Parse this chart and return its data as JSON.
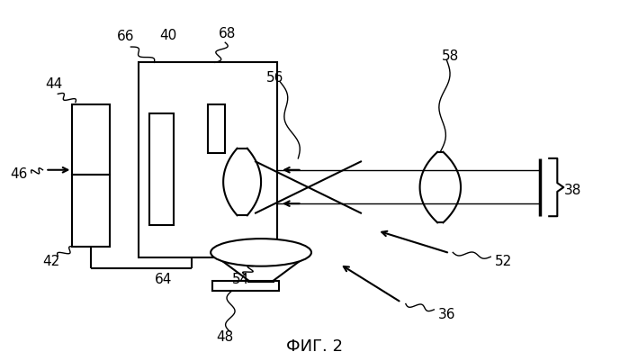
{
  "bg_color": "#ffffff",
  "line_color": "#000000",
  "title": "ФИГ. 2",
  "title_fontsize": 13
}
